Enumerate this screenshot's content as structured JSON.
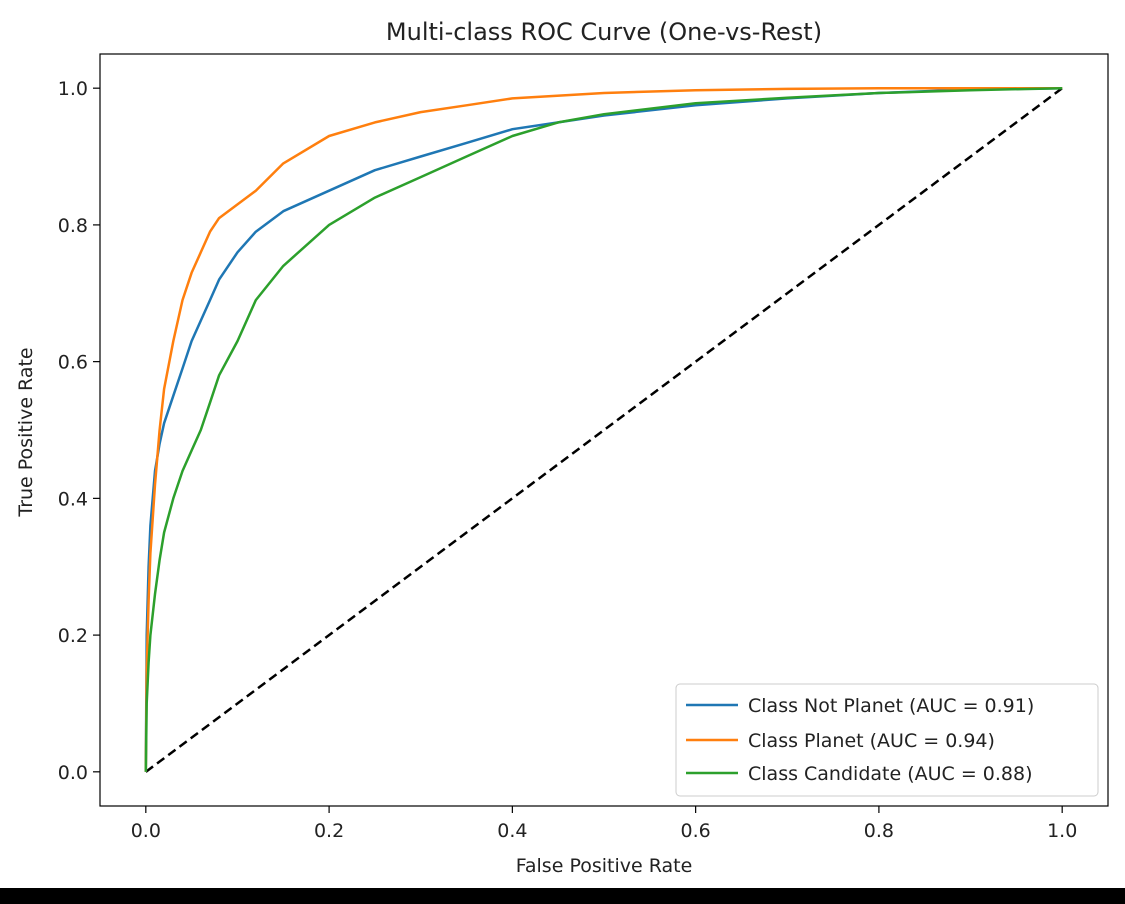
{
  "chart_data": {
    "type": "line",
    "title": "Multi-class ROC Curve (One-vs-Rest)",
    "xlabel": "False Positive Rate",
    "ylabel": "True Positive Rate",
    "xlim": [
      -0.05,
      1.05
    ],
    "ylim": [
      -0.05,
      1.05
    ],
    "xticks": [
      0.0,
      0.2,
      0.4,
      0.6,
      0.8,
      1.0
    ],
    "yticks": [
      0.0,
      0.2,
      0.4,
      0.6,
      0.8,
      1.0
    ],
    "xtick_labels": [
      "0.0",
      "0.2",
      "0.4",
      "0.6",
      "0.8",
      "1.0"
    ],
    "ytick_labels": [
      "0.0",
      "0.2",
      "0.4",
      "0.6",
      "0.8",
      "1.0"
    ],
    "grid": false,
    "legend_position": "lower-right",
    "series": [
      {
        "name": "Class Not Planet (AUC = 0.91)",
        "color": "#1f77b4",
        "x": [
          0,
          0.001,
          0.003,
          0.005,
          0.01,
          0.015,
          0.02,
          0.03,
          0.04,
          0.05,
          0.06,
          0.07,
          0.08,
          0.1,
          0.12,
          0.15,
          0.2,
          0.25,
          0.3,
          0.35,
          0.4,
          0.45,
          0.5,
          0.6,
          0.7,
          0.8,
          0.9,
          1.0
        ],
        "y": [
          0,
          0.2,
          0.3,
          0.36,
          0.44,
          0.48,
          0.51,
          0.55,
          0.59,
          0.63,
          0.66,
          0.69,
          0.72,
          0.76,
          0.79,
          0.82,
          0.85,
          0.88,
          0.9,
          0.92,
          0.94,
          0.95,
          0.96,
          0.975,
          0.985,
          0.993,
          0.998,
          1.0
        ]
      },
      {
        "name": "Class Planet (AUC = 0.94)",
        "color": "#ff7f0e",
        "x": [
          0,
          0.001,
          0.003,
          0.005,
          0.01,
          0.015,
          0.02,
          0.03,
          0.04,
          0.05,
          0.06,
          0.07,
          0.08,
          0.1,
          0.12,
          0.15,
          0.2,
          0.25,
          0.3,
          0.35,
          0.4,
          0.5,
          0.6,
          0.7,
          0.8,
          0.9,
          1.0
        ],
        "y": [
          0,
          0.15,
          0.25,
          0.32,
          0.42,
          0.5,
          0.56,
          0.63,
          0.69,
          0.73,
          0.76,
          0.79,
          0.81,
          0.83,
          0.85,
          0.89,
          0.93,
          0.95,
          0.965,
          0.975,
          0.985,
          0.993,
          0.997,
          0.999,
          1.0,
          1.0,
          1.0
        ]
      },
      {
        "name": "Class Candidate (AUC = 0.88)",
        "color": "#2ca02c",
        "x": [
          0,
          0.001,
          0.003,
          0.005,
          0.01,
          0.015,
          0.02,
          0.03,
          0.04,
          0.05,
          0.06,
          0.07,
          0.08,
          0.1,
          0.12,
          0.15,
          0.2,
          0.25,
          0.3,
          0.35,
          0.4,
          0.45,
          0.5,
          0.55,
          0.6,
          0.7,
          0.8,
          0.9,
          1.0
        ],
        "y": [
          0,
          0.1,
          0.16,
          0.2,
          0.26,
          0.31,
          0.35,
          0.4,
          0.44,
          0.47,
          0.5,
          0.54,
          0.58,
          0.63,
          0.69,
          0.74,
          0.8,
          0.84,
          0.87,
          0.9,
          0.93,
          0.95,
          0.962,
          0.97,
          0.978,
          0.986,
          0.993,
          0.997,
          1.0
        ]
      }
    ],
    "reference_line": {
      "x": [
        0,
        1
      ],
      "y": [
        0,
        1
      ],
      "color": "#000000",
      "style": "dashed"
    }
  }
}
